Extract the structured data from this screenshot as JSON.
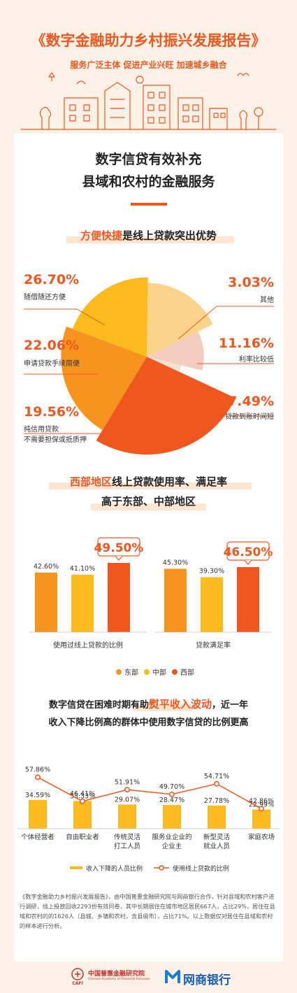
{
  "header": {
    "title": "《数字金融助力乡村振兴发展报告》",
    "subtitle": "服务广泛主体  促进产业兴旺  加速城乡融合"
  },
  "card": {
    "title_line1": "数字信贷有效补充",
    "title_line2": "县域和农村的金融服务"
  },
  "section1": {
    "title_highlight": "方便快捷",
    "title_rest": "是线上贷款突出优势"
  },
  "section2": {
    "line1_highlight": "西部地区",
    "line1_rest": "线上贷款使用率、满足率",
    "line2": "高于东部、中部地区"
  },
  "section3": {
    "line1_pre": "数字信贷在困难时期有助",
    "line1_highlight": "熨平收入波动",
    "line1_post": "，近一年",
    "line2": "收入下降比例高的群体中使用数字信贷的比例更高"
  },
  "footnote": "《数字金融助力乡村振兴发展报告》，由中国普惠金融研究院与网商银行合作，针对县域和农村客户进行调研，线上投放回收2293份有效问卷，其中长期居住在城市地区居民667人，占比29%，居住在县域和农村的的1626人（县城、乡镇和农村，含县级市），占比71%。以上数据仅对居住在县域和农村的样本进行分析。",
  "logos": {
    "cafi_cn": "中国普惠金融研究院",
    "cafi_en": "Chinese Academy of Financial Inclusion",
    "cafi_abbr": "CAFI",
    "mybank": "网商银行"
  },
  "colors": {
    "accent": "#f0571e",
    "pie": [
      "#f0571e",
      "#f7941d",
      "#fbbb1c",
      "#fbd38b",
      "#f5ccc0",
      "#f5e3cf"
    ],
    "bar_east": "#f7941d",
    "bar_central": "#fbbb1c",
    "bar_west": "#f0571e",
    "bar3": "#fbbb1c",
    "line3": "#f0571e"
  },
  "chart_data": [
    {
      "type": "pie",
      "labels": [
        "随借随还方便",
        "申请贷款手续简便",
        "纯信用贷款\n不需要担保或抵质押",
        "贷款到账时间短",
        "利率比较低",
        "其他"
      ],
      "values": [
        26.7,
        22.06,
        19.56,
        17.49,
        11.16,
        3.03
      ],
      "value_labels": [
        "26.70%",
        "22.06%",
        "19.56%",
        "17.49%",
        "11.16%",
        "3.03%"
      ]
    },
    {
      "type": "bar",
      "categories": [
        "使用过线上贷款的比例",
        "贷款满足率"
      ],
      "series": [
        {
          "name": "东部",
          "values": [
            42.6,
            45.3
          ],
          "labels": [
            "42.60%",
            "45.30%"
          ]
        },
        {
          "name": "中部",
          "values": [
            41.1,
            39.3
          ],
          "labels": [
            "41.10%",
            "39.30%"
          ]
        },
        {
          "name": "西部",
          "values": [
            49.5,
            46.5
          ],
          "labels": [
            "49.50%",
            "46.50%"
          ]
        }
      ],
      "legend": [
        "东部",
        "中部",
        "西部"
      ]
    },
    {
      "type": "bar",
      "categories": [
        "个体经营者",
        "自由职业者",
        "传统灵活\n打工人员",
        "服务业企业的\n企业主",
        "新型灵活\n就业人员",
        "家庭农场"
      ],
      "series": [
        {
          "name": "收入下降的人员比例",
          "type": "bar",
          "values": [
            34.59,
            33.33,
            29.07,
            28.47,
            27.78,
            22.99
          ],
          "labels": [
            "34.59%",
            "33.33%",
            "29.07%",
            "28.47%",
            "27.78%",
            "22.99%"
          ]
        },
        {
          "name": "使用线上贷款的比例",
          "type": "line",
          "values": [
            57.86,
            46.41,
            51.91,
            49.7,
            54.71,
            42.86
          ],
          "labels": [
            "57.86%",
            "46.41%",
            "51.91%",
            "49.70%",
            "54.71%",
            "42.86%"
          ]
        }
      ],
      "legend": [
        "收入下降的人员比例",
        "使用线上贷款的比例"
      ]
    }
  ]
}
